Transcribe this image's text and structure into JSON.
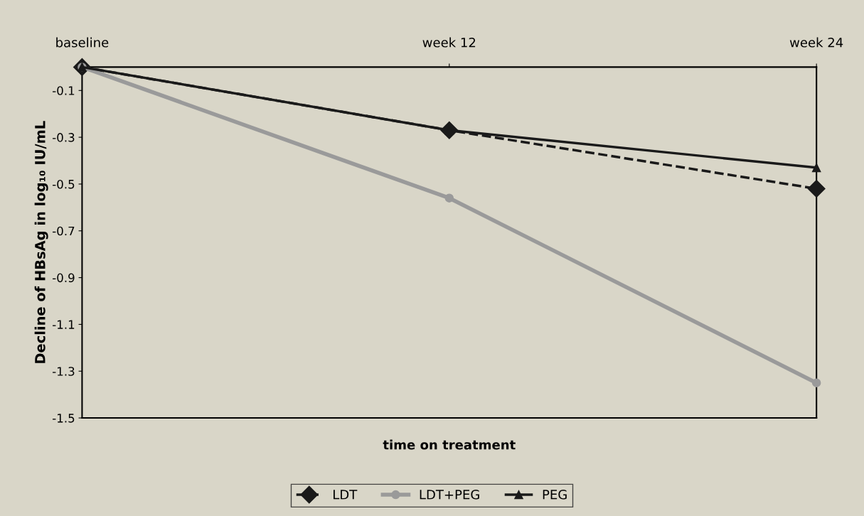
{
  "chart_data": {
    "type": "line",
    "categories": [
      "baseline",
      "week 12",
      "week 24"
    ],
    "xlabel": "time on treatment",
    "ylabel": "Decline of HBsAg in log₁₀ IU/mL",
    "ylim": [
      -1.5,
      0
    ],
    "yticks": [
      -0.1,
      -0.3,
      -0.5,
      -0.7,
      -0.9,
      -1.1,
      -1.3,
      -1.5
    ],
    "grid": false,
    "legend": "bottom",
    "series": [
      {
        "name": "LDT",
        "color": "#1a1a1a",
        "marker": "diamond",
        "line_style": "dashed",
        "values": [
          0,
          -0.27,
          -0.52
        ]
      },
      {
        "name": "LDT+PEG",
        "color": "#9a9a9a",
        "marker": "circle",
        "line_style": "solid",
        "values": [
          0,
          -0.56,
          -1.35
        ]
      },
      {
        "name": "PEG",
        "color": "#1a1a1a",
        "marker": "triangle",
        "line_style": "solid",
        "values": [
          0,
          -0.27,
          -0.43
        ]
      }
    ]
  }
}
